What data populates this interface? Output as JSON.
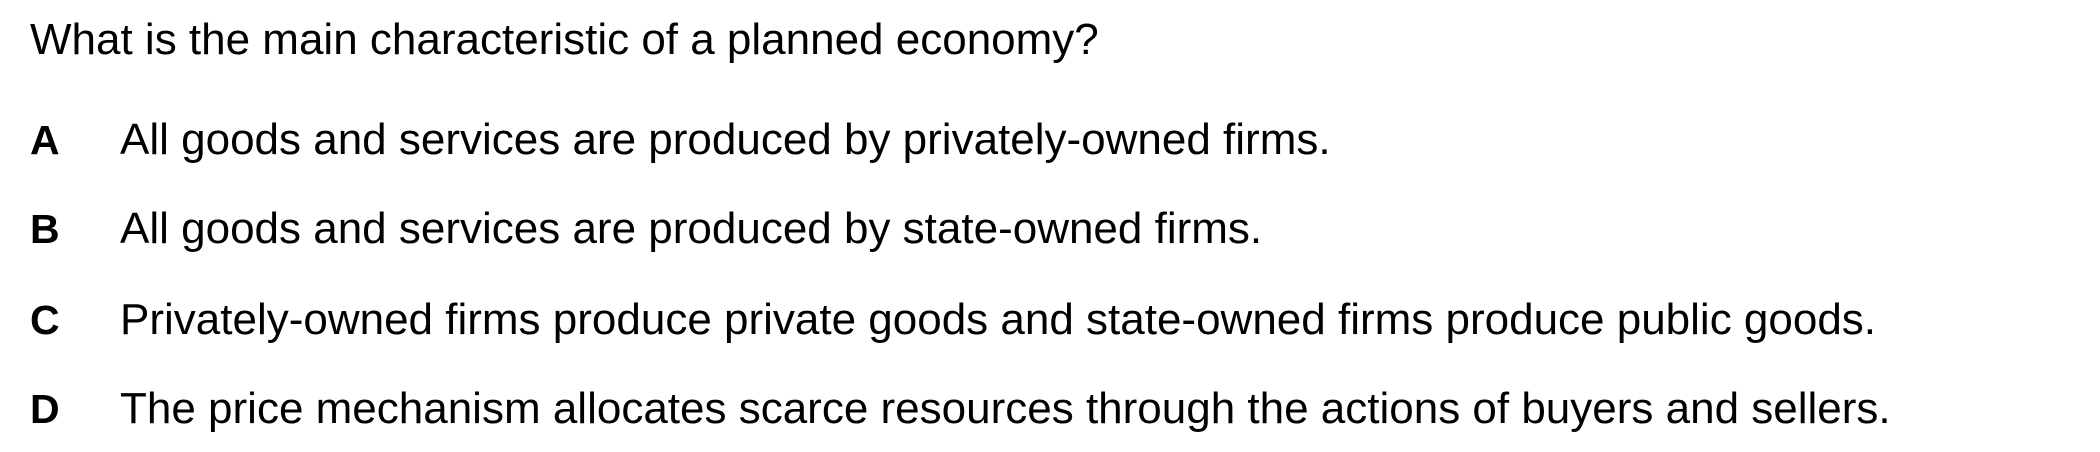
{
  "question": "What is the main characteristic of a planned economy?",
  "options": [
    {
      "letter": "A",
      "text": "All goods and services are produced by privately-owned firms."
    },
    {
      "letter": "B",
      "text": "All goods and services are produced by state-owned firms."
    },
    {
      "letter": "C",
      "text": "Privately-owned firms produce private goods and state-owned firms produce public goods."
    },
    {
      "letter": "D",
      "text": "The price mechanism allocates scarce resources through the actions of buyers and sellers."
    }
  ]
}
